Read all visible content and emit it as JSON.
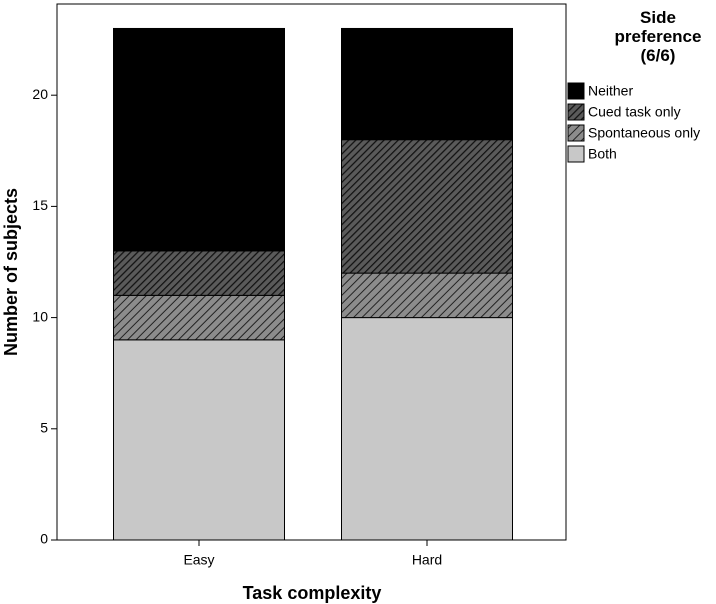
{
  "chart_data": {
    "type": "stacked-bar",
    "x_label": "Task complexity",
    "y_label": "Number of subjects",
    "legend_title": "Side preference (6/6)",
    "categories": [
      "Easy",
      "Hard"
    ],
    "series": [
      {
        "name": "Both",
        "color": "#c8c8c8",
        "values": [
          9,
          10
        ]
      },
      {
        "name": "Spontaneous only",
        "color": "#8c8c8c",
        "values": [
          2,
          2
        ]
      },
      {
        "name": "Cued task only",
        "color": "#3c3c3c",
        "values": [
          2,
          6
        ]
      },
      {
        "name": "Neither",
        "color": "#000000",
        "values": [
          10,
          5
        ]
      }
    ],
    "ylim": [
      0,
      24.1
    ],
    "yticks": [
      0,
      5,
      10,
      15,
      20
    ],
    "grid": false,
    "legend": "right"
  }
}
